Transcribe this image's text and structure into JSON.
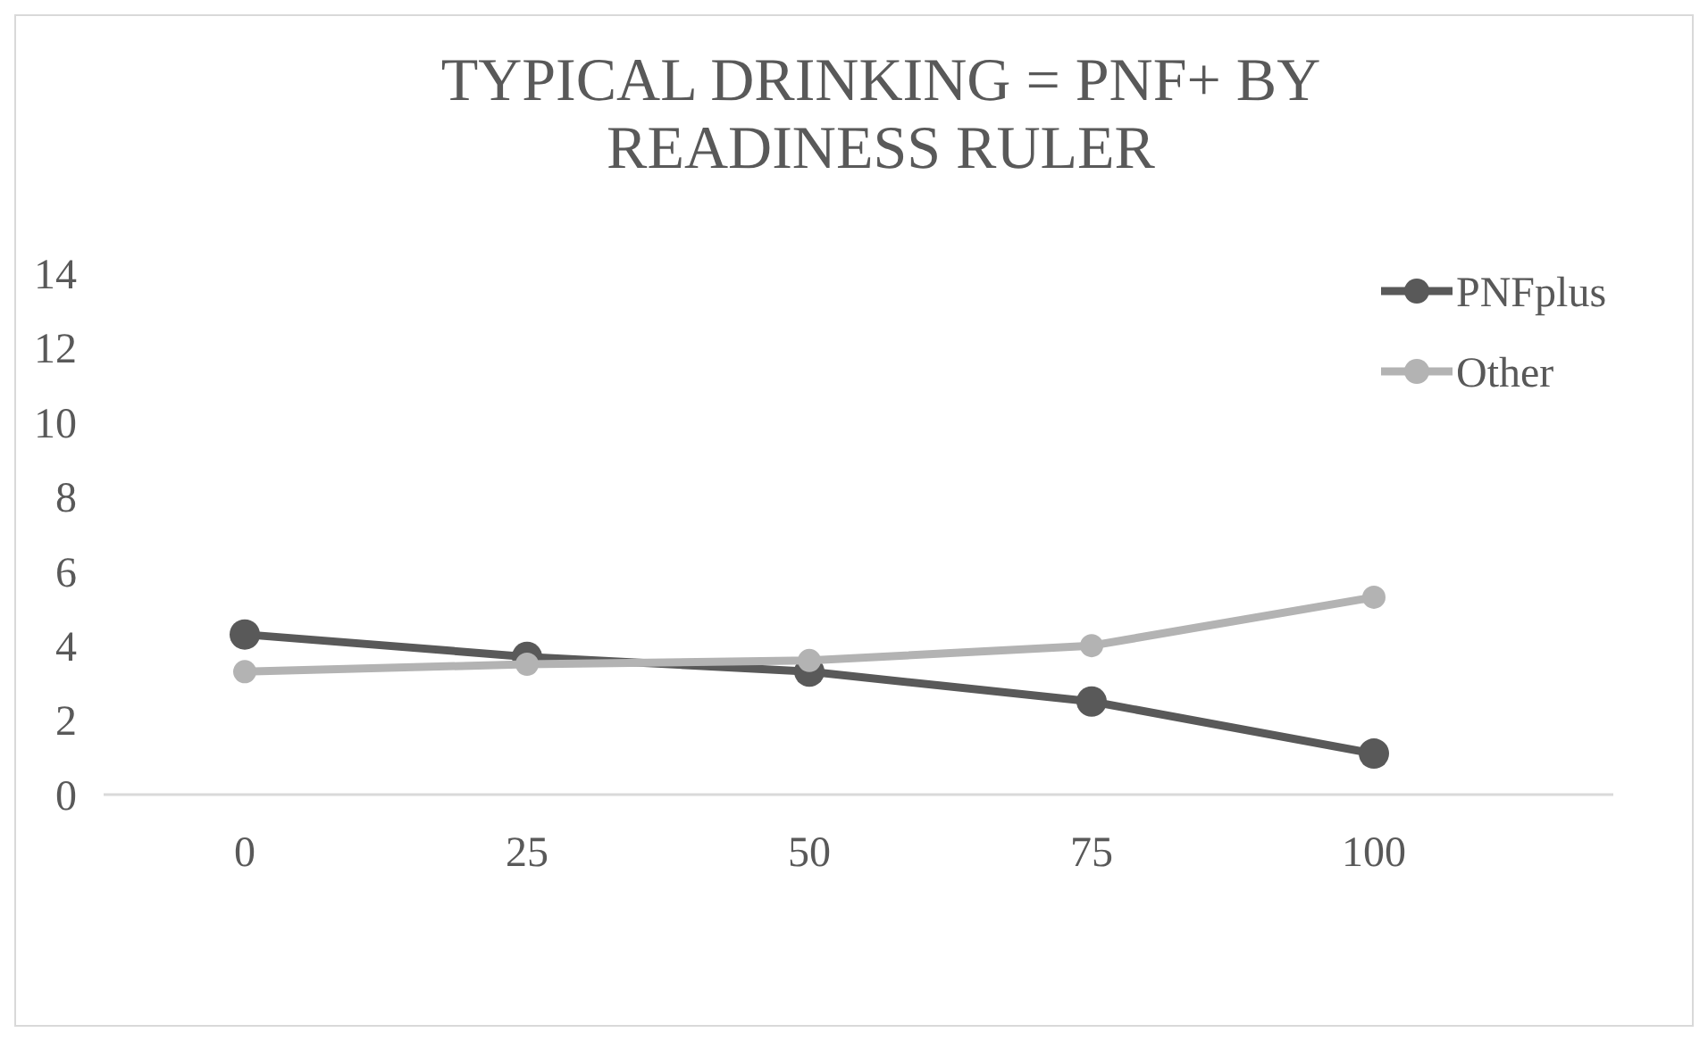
{
  "chart_data": {
    "type": "line",
    "title": "TYPICAL DRINKING = PNF+ BY READINESS RULER",
    "categories": [
      "0",
      "25",
      "50",
      "75",
      "100"
    ],
    "series": [
      {
        "name": "PNFplus",
        "color": "#595959",
        "values": [
          4.3,
          3.7,
          3.3,
          2.5,
          1.1
        ]
      },
      {
        "name": "Other",
        "color": "#b3b3b3",
        "values": [
          3.3,
          3.5,
          3.6,
          4.0,
          5.3
        ]
      }
    ],
    "ylim": [
      0,
      14
    ],
    "yticks": [
      0,
      2,
      4,
      6,
      8,
      10,
      12,
      14
    ],
    "grid": false,
    "legend": "top right",
    "marker": "circle"
  }
}
